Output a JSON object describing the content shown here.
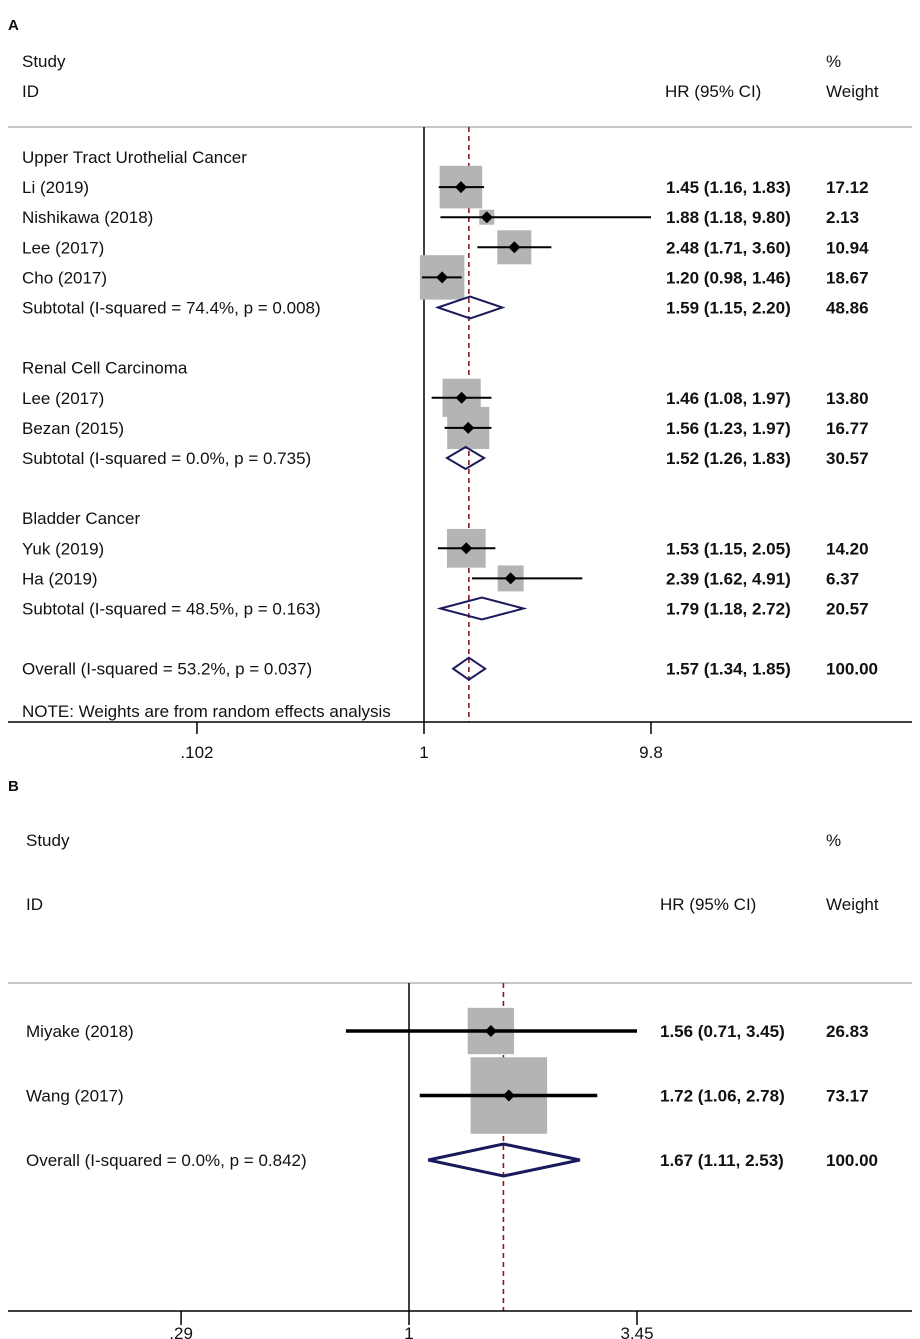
{
  "chart_data": [
    {
      "type": "forest",
      "panel_label": "A",
      "header": {
        "study": "Study",
        "id": "ID",
        "effect": "HR (95% CI)",
        "pct": "%",
        "weight": "Weight"
      },
      "x_scale": "log",
      "xticks": [
        0.102,
        1,
        9.8
      ],
      "xtick_labels": [
        ".102",
        "1",
        "9.8"
      ],
      "reference_line": 1,
      "overall_line": 1.57,
      "rows": [
        {
          "kind": "group",
          "label": "Upper Tract Urothelial Cancer"
        },
        {
          "kind": "study",
          "label": "Li (2019)",
          "hr": 1.45,
          "lo": 1.16,
          "hi": 1.83,
          "ci_text": "1.45 (1.16, 1.83)",
          "weight": 17.12,
          "weight_text": "17.12"
        },
        {
          "kind": "study",
          "label": "Nishikawa (2018)",
          "hr": 1.88,
          "lo": 1.18,
          "hi": 9.8,
          "ci_text": "1.88 (1.18, 9.80)",
          "weight": 2.13,
          "weight_text": "2.13"
        },
        {
          "kind": "study",
          "label": "Lee (2017)",
          "hr": 2.48,
          "lo": 1.71,
          "hi": 3.6,
          "ci_text": "2.48 (1.71, 3.60)",
          "weight": 10.94,
          "weight_text": "10.94"
        },
        {
          "kind": "study",
          "label": "Cho (2017)",
          "hr": 1.2,
          "lo": 0.98,
          "hi": 1.46,
          "ci_text": "1.20 (0.98, 1.46)",
          "weight": 18.67,
          "weight_text": "18.67"
        },
        {
          "kind": "subtotal",
          "label": "Subtotal  (I-squared = 74.4%, p = 0.008)",
          "hr": 1.59,
          "lo": 1.15,
          "hi": 2.2,
          "ci_text": "1.59 (1.15, 2.20)",
          "weight_text": "48.86"
        },
        {
          "kind": "spacer"
        },
        {
          "kind": "group",
          "label": "Renal Cell Carcinoma"
        },
        {
          "kind": "study",
          "label": "Lee (2017)",
          "hr": 1.46,
          "lo": 1.08,
          "hi": 1.97,
          "ci_text": "1.46 (1.08, 1.97)",
          "weight": 13.8,
          "weight_text": "13.80"
        },
        {
          "kind": "study",
          "label": "Bezan (2015)",
          "hr": 1.56,
          "lo": 1.23,
          "hi": 1.97,
          "ci_text": "1.56 (1.23, 1.97)",
          "weight": 16.77,
          "weight_text": "16.77"
        },
        {
          "kind": "subtotal",
          "label": "Subtotal  (I-squared = 0.0%, p = 0.735)",
          "hr": 1.52,
          "lo": 1.26,
          "hi": 1.83,
          "ci_text": "1.52 (1.26, 1.83)",
          "weight_text": "30.57"
        },
        {
          "kind": "spacer"
        },
        {
          "kind": "group",
          "label": "Bladder Cancer"
        },
        {
          "kind": "study",
          "label": "Yuk (2019)",
          "hr": 1.53,
          "lo": 1.15,
          "hi": 2.05,
          "ci_text": "1.53 (1.15, 2.05)",
          "weight": 14.2,
          "weight_text": "14.20"
        },
        {
          "kind": "study",
          "label": "Ha (2019)",
          "hr": 2.39,
          "lo": 1.62,
          "hi": 4.91,
          "ci_text": "2.39 (1.62, 4.91)",
          "weight": 6.37,
          "weight_text": "6.37"
        },
        {
          "kind": "subtotal",
          "label": "Subtotal  (I-squared = 48.5%, p = 0.163)",
          "hr": 1.79,
          "lo": 1.18,
          "hi": 2.72,
          "ci_text": "1.79 (1.18, 2.72)",
          "weight_text": "20.57"
        },
        {
          "kind": "spacer"
        },
        {
          "kind": "overall",
          "label": "Overall  (I-squared = 53.2%, p = 0.037)",
          "hr": 1.57,
          "lo": 1.34,
          "hi": 1.85,
          "ci_text": "1.57 (1.34, 1.85)",
          "weight_text": "100.00"
        }
      ],
      "note": "NOTE: Weights are from random effects analysis"
    },
    {
      "type": "forest",
      "panel_label": "B",
      "header": {
        "study": "Study",
        "id": "ID",
        "effect": "HR (95% CI)",
        "pct": "%",
        "weight": "Weight"
      },
      "x_scale": "log",
      "xticks": [
        0.29,
        1,
        3.45
      ],
      "xtick_labels": [
        ".29",
        "1",
        "3.45"
      ],
      "reference_line": 1,
      "overall_line": 1.67,
      "rows": [
        {
          "kind": "study",
          "label": "Miyake (2018)",
          "hr": 1.56,
          "lo": 0.71,
          "hi": 3.45,
          "ci_text": "1.56 (0.71, 3.45)",
          "weight": 26.83,
          "weight_text": "26.83"
        },
        {
          "kind": "study",
          "label": "Wang (2017)",
          "hr": 1.72,
          "lo": 1.06,
          "hi": 2.78,
          "ci_text": "1.72 (1.06, 2.78)",
          "weight": 73.17,
          "weight_text": "73.17"
        },
        {
          "kind": "overall",
          "label": "Overall  (I-squared = 0.0%, p = 0.842)",
          "hr": 1.67,
          "lo": 1.11,
          "hi": 2.53,
          "ci_text": "1.67 (1.11, 2.53)",
          "weight_text": "100.00"
        }
      ]
    }
  ],
  "colors": {
    "text": "#111111",
    "axis": "#000000",
    "separator": "#b4b4b4",
    "weight_box": "#b4b4b4",
    "diamond": "#1a1a5c",
    "overall_line": "#8b1a1a"
  }
}
